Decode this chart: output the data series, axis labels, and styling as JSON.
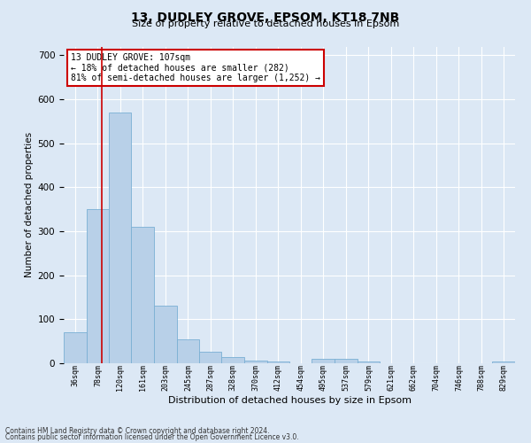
{
  "title": "13, DUDLEY GROVE, EPSOM, KT18 7NB",
  "subtitle": "Size of property relative to detached houses in Epsom",
  "xlabel": "Distribution of detached houses by size in Epsom",
  "ylabel": "Number of detached properties",
  "bar_color": "#b8d0e8",
  "bar_edge_color": "#7aafd4",
  "background_color": "#dce8f5",
  "fig_background_color": "#dce8f5",
  "grid_color": "#ffffff",
  "vline_color": "#cc0000",
  "vline_x": 107,
  "bin_edges": [
    36,
    78,
    120,
    161,
    203,
    245,
    287,
    328,
    370,
    412,
    454,
    495,
    537,
    579,
    621,
    662,
    704,
    746,
    788,
    829,
    871
  ],
  "bar_heights": [
    70,
    350,
    570,
    310,
    130,
    55,
    27,
    15,
    7,
    5,
    0,
    10,
    10,
    5,
    0,
    0,
    0,
    0,
    0,
    5
  ],
  "ylim": [
    0,
    720
  ],
  "yticks": [
    0,
    100,
    200,
    300,
    400,
    500,
    600,
    700
  ],
  "annotation_text": "13 DUDLEY GROVE: 107sqm\n← 18% of detached houses are smaller (282)\n81% of semi-detached houses are larger (1,252) →",
  "annotation_box_facecolor": "#ffffff",
  "annotation_box_edgecolor": "#cc0000",
  "footnote1": "Contains HM Land Registry data © Crown copyright and database right 2024.",
  "footnote2": "Contains public sector information licensed under the Open Government Licence v3.0.",
  "title_fontsize": 10,
  "subtitle_fontsize": 8,
  "ylabel_fontsize": 7.5,
  "xlabel_fontsize": 8,
  "ytick_fontsize": 7.5,
  "xtick_fontsize": 6,
  "annot_fontsize": 7,
  "footnote_fontsize": 5.5
}
